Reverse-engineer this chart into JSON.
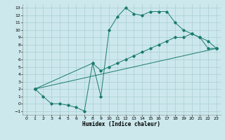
{
  "xlabel": "Humidex (Indice chaleur)",
  "bg_color": "#cce8ec",
  "grid_color": "#aacdd4",
  "line_color": "#1a7a6e",
  "xlim": [
    -0.5,
    23.5
  ],
  "ylim": [
    -1.5,
    13.5
  ],
  "xticks": [
    0,
    1,
    2,
    3,
    4,
    5,
    6,
    7,
    8,
    9,
    10,
    11,
    12,
    13,
    14,
    15,
    16,
    17,
    18,
    19,
    20,
    21,
    22,
    23
  ],
  "yticks": [
    -1,
    0,
    1,
    2,
    3,
    4,
    5,
    6,
    7,
    8,
    9,
    10,
    11,
    12,
    13
  ],
  "line1_x": [
    1,
    2,
    3,
    4,
    5,
    6,
    7,
    8,
    9,
    10,
    11,
    12,
    13,
    14,
    15,
    16,
    17,
    18,
    19,
    20,
    21,
    22,
    23
  ],
  "line1_y": [
    2,
    1,
    0,
    0,
    -0.2,
    -0.5,
    -1,
    5.5,
    1,
    10,
    11.8,
    13,
    12.2,
    12,
    12.5,
    12.5,
    12.5,
    11.0,
    10,
    9.5,
    9,
    7.5,
    7.5
  ],
  "line2_x": [
    1,
    8,
    9,
    10,
    11,
    12,
    13,
    14,
    15,
    16,
    17,
    18,
    19,
    20,
    21,
    22,
    23
  ],
  "line2_y": [
    2,
    5.5,
    4.5,
    5,
    5.5,
    6,
    6.5,
    7,
    7.5,
    8,
    8.5,
    9,
    9,
    9.5,
    9,
    8.5,
    7.5
  ],
  "line3_x": [
    1,
    23
  ],
  "line3_y": [
    2,
    7.5
  ]
}
